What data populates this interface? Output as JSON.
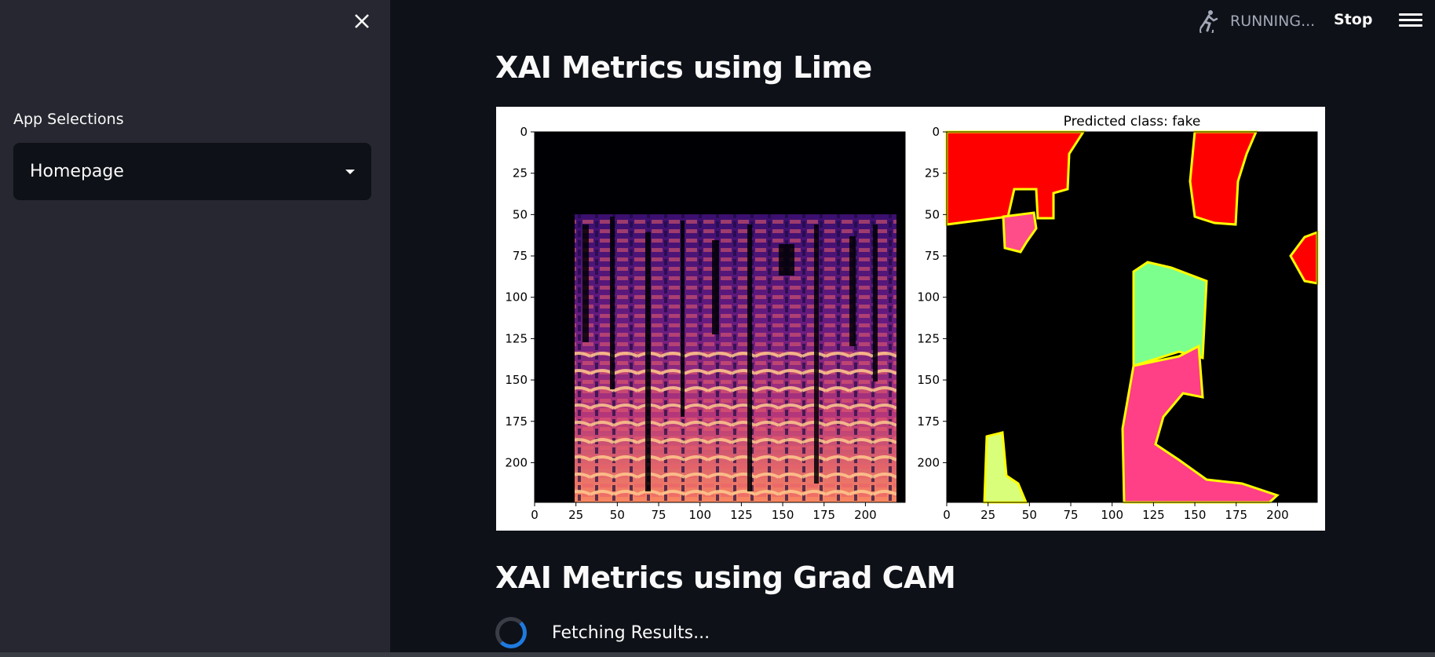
{
  "sidebar": {
    "section_label": "App Selections",
    "select_value": "Homepage",
    "close_icon": "close-icon"
  },
  "topbar": {
    "status": "RUNNING...",
    "stop_label": "Stop",
    "running_icon": "running-person-icon",
    "menu_icon": "hamburger-menu-icon"
  },
  "main": {
    "heading1": "XAI Metrics using Lime",
    "heading2": "XAI Metrics using Grad CAM",
    "loading_text": "Fetching Results..."
  },
  "chart_data": [
    {
      "type": "heatmap",
      "title": "",
      "x_ticks": [
        0,
        25,
        50,
        75,
        100,
        125,
        150,
        175,
        200
      ],
      "y_ticks": [
        0,
        25,
        50,
        75,
        100,
        125,
        150,
        175,
        200
      ],
      "xlim": [
        0,
        224
      ],
      "ylim": [
        224,
        0
      ],
      "colormap": "magma"
    },
    {
      "type": "heatmap",
      "title": "Predicted class: fake",
      "x_ticks": [
        0,
        25,
        50,
        75,
        100,
        125,
        150,
        175,
        200
      ],
      "y_ticks": [
        0,
        25,
        50,
        75,
        100,
        125,
        150,
        175,
        200
      ],
      "xlim": [
        0,
        224
      ],
      "ylim": [
        224,
        0
      ],
      "colors": {
        "positive": "#00ff00",
        "negative": "#ff0000",
        "boundary": "#ffff00"
      }
    }
  ]
}
